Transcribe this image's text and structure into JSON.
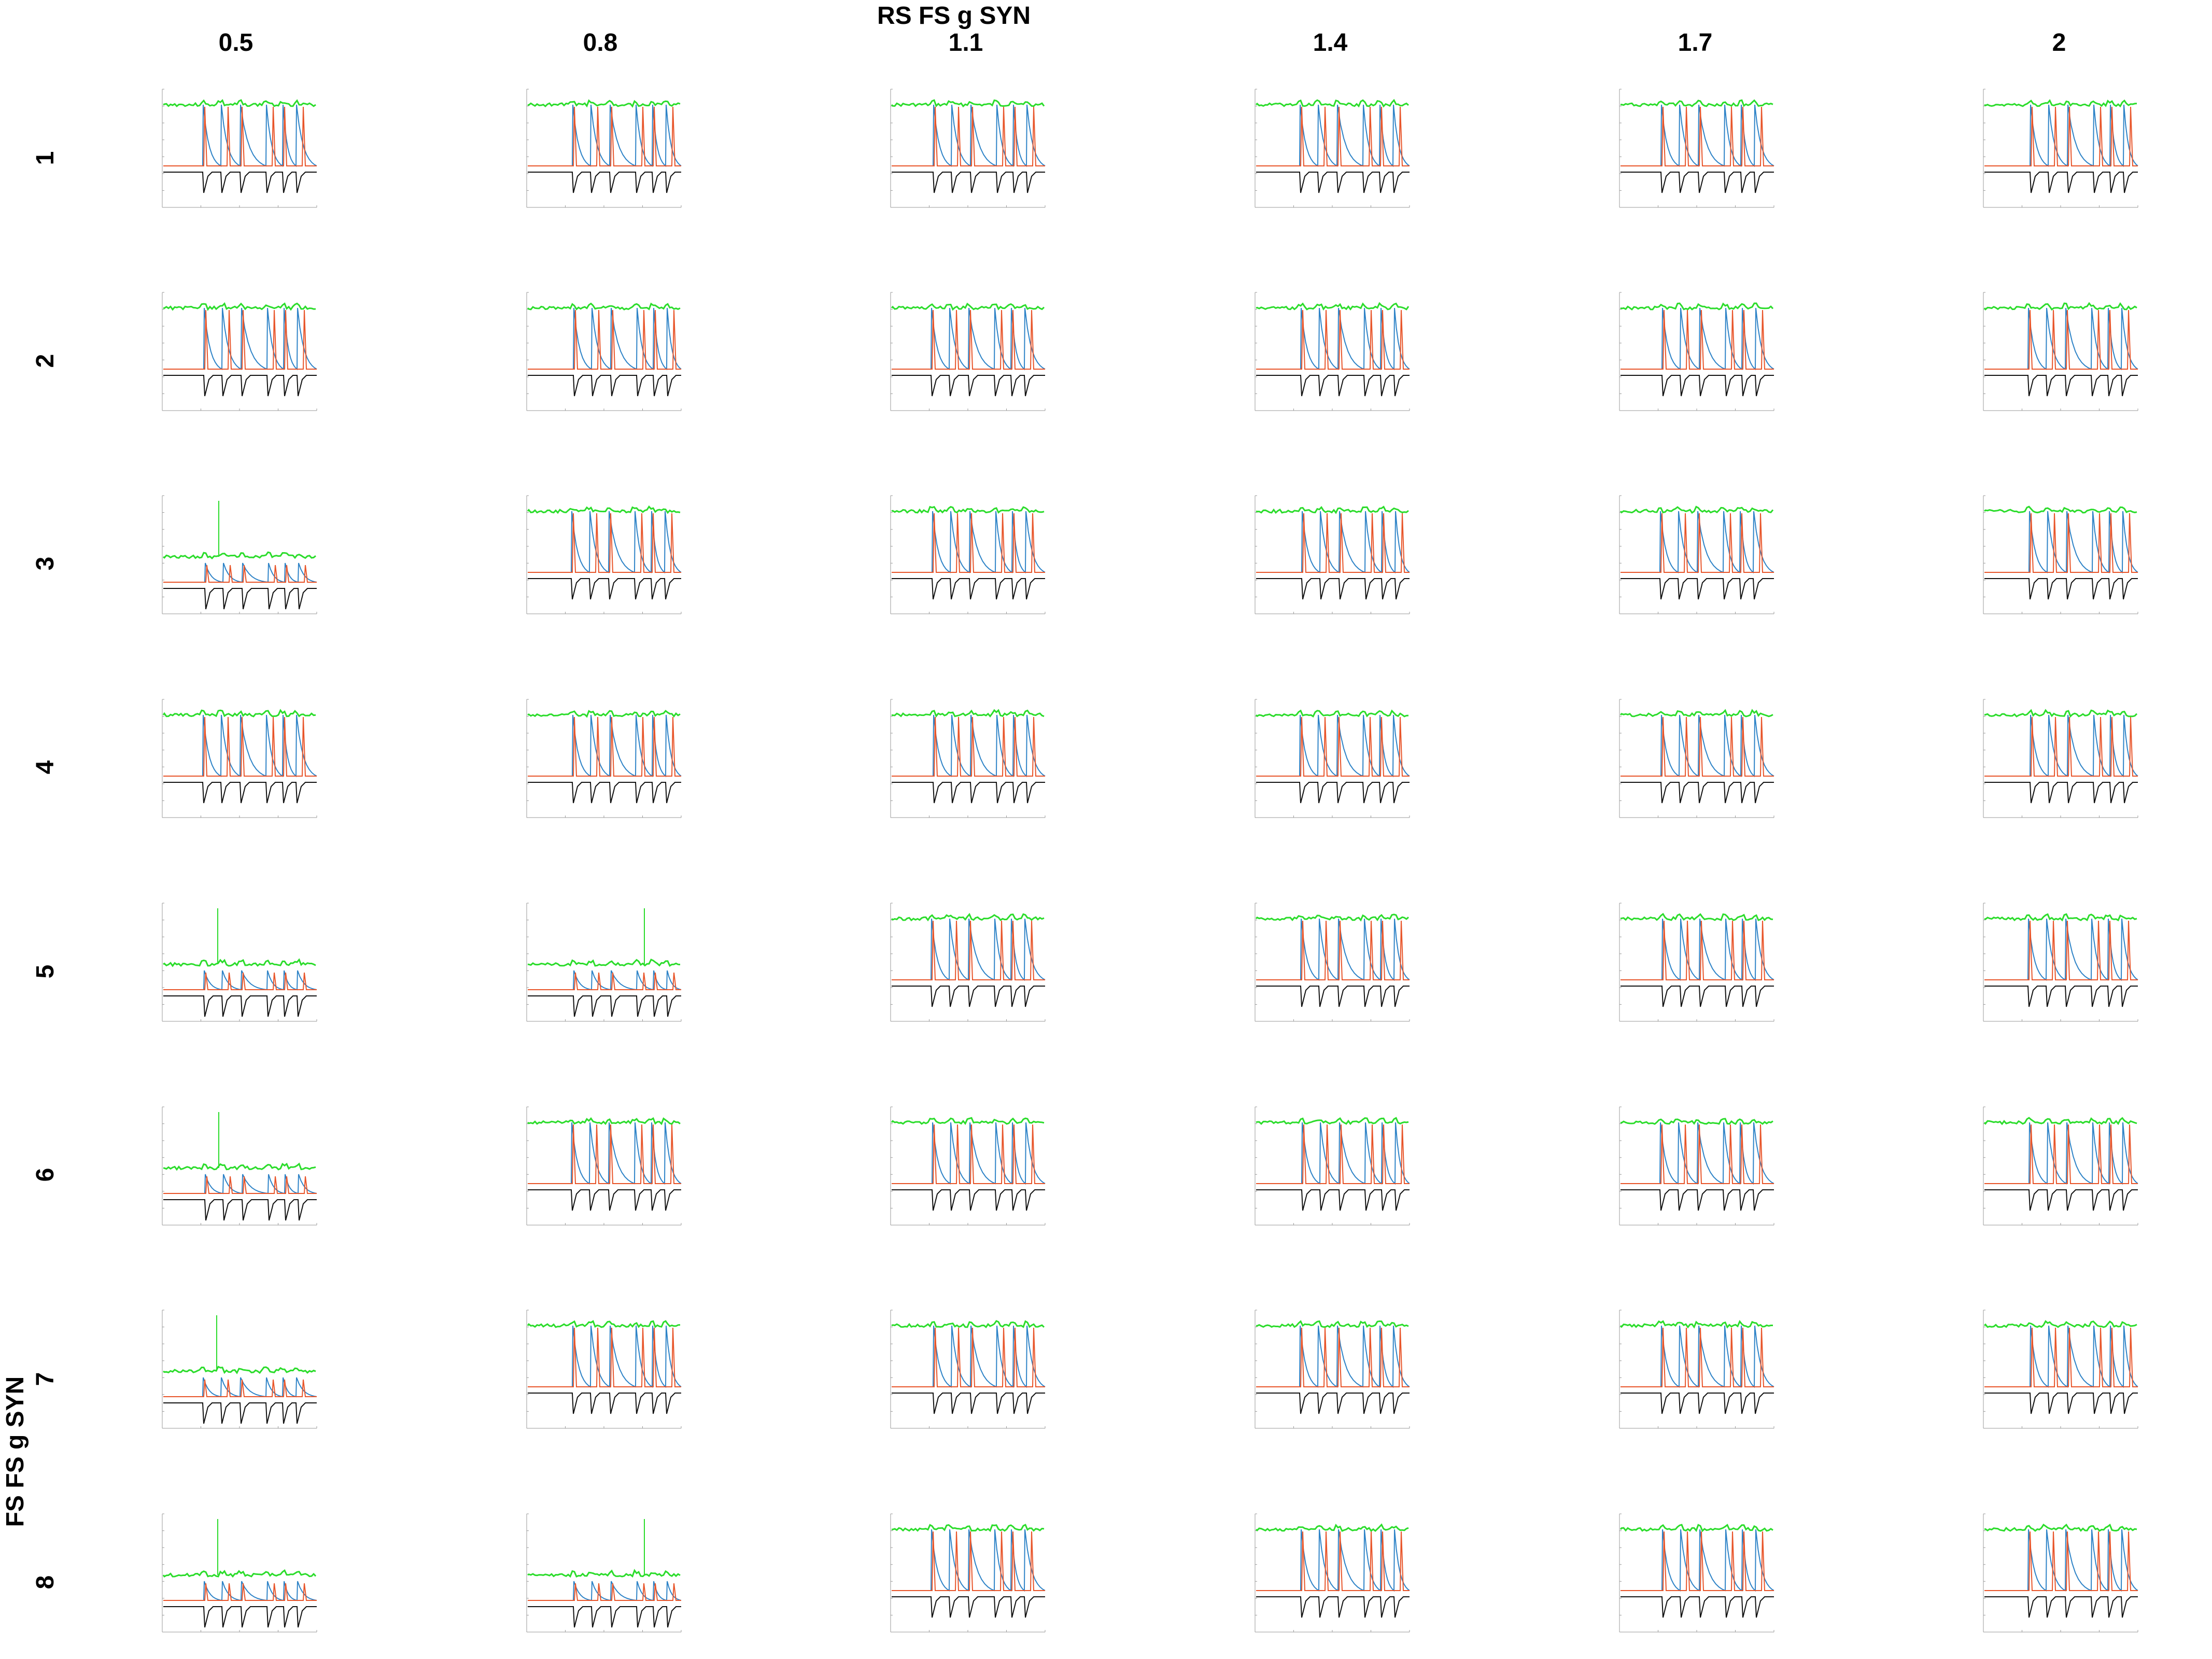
{
  "chart_data": {
    "type": "line",
    "title": "RS FS g SYN",
    "xlabel": "",
    "ylabel": "FS FS g SYN",
    "columns": [
      "0.5",
      "0.8",
      "1.1",
      "1.4",
      "1.7",
      "2"
    ],
    "rows": [
      "1",
      "2",
      "3",
      "4",
      "5",
      "6",
      "7",
      "8"
    ],
    "series": [
      {
        "color": "#2bdc2b"
      },
      {
        "color": "#2e83c7"
      },
      {
        "color": "#e8552a"
      },
      {
        "color": "#111111"
      }
    ],
    "low_state_panels": [
      [
        3,
        1
      ],
      [
        5,
        1
      ],
      [
        5,
        2
      ],
      [
        6,
        1
      ],
      [
        7,
        1
      ],
      [
        8,
        1
      ],
      [
        8,
        2
      ]
    ],
    "grid": false
  }
}
